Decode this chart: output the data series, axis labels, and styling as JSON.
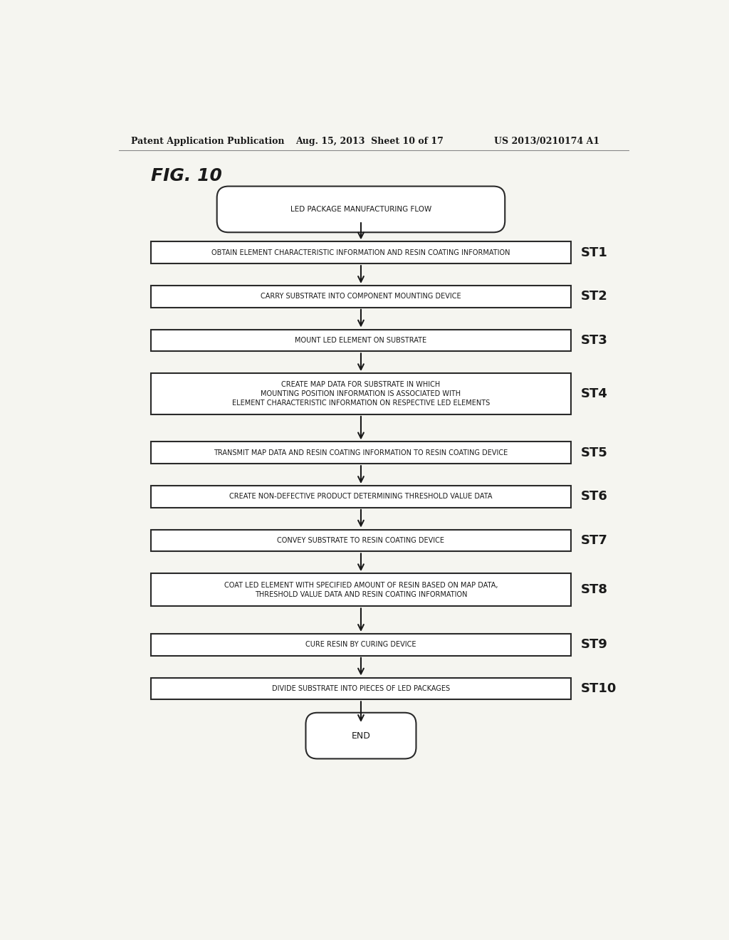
{
  "title": "FIG. 10",
  "header_left": "Patent Application Publication",
  "header_mid": "Aug. 15, 2013  Sheet 10 of 17",
  "header_right": "US 2013/0210174 A1",
  "bg_color": "#f5f5f0",
  "start_label": "LED PACKAGE MANUFACTURING FLOW",
  "end_label": "END",
  "steps": [
    {
      "label": "OBTAIN ELEMENT CHARACTERISTIC INFORMATION AND RESIN COATING INFORMATION",
      "step": "ST1"
    },
    {
      "label": "CARRY SUBSTRATE INTO COMPONENT MOUNTING DEVICE",
      "step": "ST2"
    },
    {
      "label": "MOUNT LED ELEMENT ON SUBSTRATE",
      "step": "ST3"
    },
    {
      "label": "CREATE MAP DATA FOR SUBSTRATE IN WHICH\nMOUNTING POSITION INFORMATION IS ASSOCIATED WITH\nELEMENT CHARACTERISTIC INFORMATION ON RESPECTIVE LED ELEMENTS",
      "step": "ST4"
    },
    {
      "label": "TRANSMIT MAP DATA AND RESIN COATING INFORMATION TO RESIN COATING DEVICE",
      "step": "ST5"
    },
    {
      "label": "CREATE NON-DEFECTIVE PRODUCT DETERMINING THRESHOLD VALUE DATA",
      "step": "ST6"
    },
    {
      "label": "CONVEY SUBSTRATE TO RESIN COATING DEVICE",
      "step": "ST7"
    },
    {
      "label": "COAT LED ELEMENT WITH SPECIFIED AMOUNT OF RESIN BASED ON MAP DATA,\nTHRESHOLD VALUE DATA AND RESIN COATING INFORMATION",
      "step": "ST8"
    },
    {
      "label": "CURE RESIN BY CURING DEVICE",
      "step": "ST9"
    },
    {
      "label": "DIVIDE SUBSTRATE INTO PIECES OF LED PACKAGES",
      "step": "ST10"
    }
  ],
  "box_edge_color": "#2a2a2a",
  "box_face_color": "#ffffff",
  "text_color": "#1a1a1a",
  "arrow_color": "#1a1a1a",
  "header_line_color": "#888888"
}
